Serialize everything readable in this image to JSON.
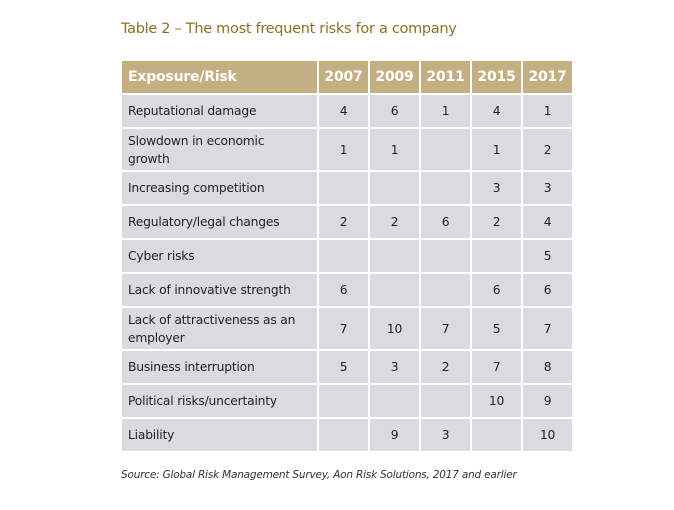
{
  "title": "Table 2 – The most frequent risks for a company",
  "table": {
    "headers": [
      "Exposure/Risk",
      "2007",
      "2009",
      "2011",
      "2015",
      "2017"
    ],
    "rows": [
      {
        "risk": "Reputational damage",
        "v": [
          "4",
          "6",
          "1",
          "4",
          "1"
        ]
      },
      {
        "risk": "Slowdown in economic growth",
        "v": [
          "1",
          "1",
          "",
          "1",
          "2"
        ]
      },
      {
        "risk": "Increasing competition",
        "v": [
          "",
          "",
          "",
          "3",
          "3"
        ]
      },
      {
        "risk": "Regulatory/legal changes",
        "v": [
          "2",
          "2",
          "6",
          "2",
          "4"
        ]
      },
      {
        "risk": "Cyber risks",
        "v": [
          "",
          "",
          "",
          "",
          "5"
        ]
      },
      {
        "risk": "Lack of innovative strength",
        "v": [
          "6",
          "",
          "",
          "6",
          "6"
        ]
      },
      {
        "risk": "Lack of attractiveness as an employer",
        "v": [
          "7",
          "10",
          "7",
          "5",
          "7"
        ]
      },
      {
        "risk": "Business interruption",
        "v": [
          "5",
          "3",
          "2",
          "7",
          "8"
        ]
      },
      {
        "risk": "Political risks/uncertainty",
        "v": [
          "",
          "",
          "",
          "10",
          "9"
        ]
      },
      {
        "risk": "Liability",
        "v": [
          "",
          "9",
          "3",
          "",
          "10"
        ]
      }
    ]
  },
  "source": "Source: Global Risk Management Survey, Aon Risk Solutions, 2017 and earlier",
  "colors": {
    "title": "#8a7028",
    "header_bg": "#c3af82",
    "cell_bg": "#d9dcdf"
  }
}
